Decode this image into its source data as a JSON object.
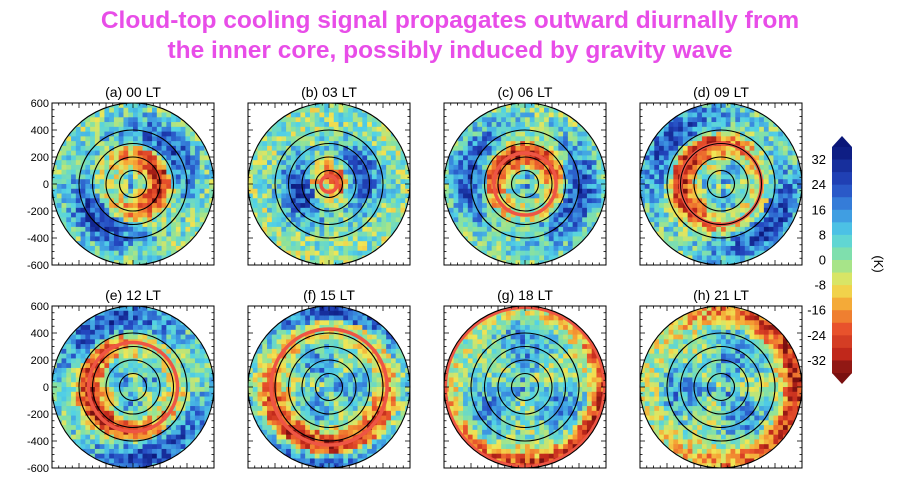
{
  "title": {
    "line1": "Cloud-top cooling signal propagates outward diurnally from",
    "line2": "the inner core, possibly induced by gravity wave"
  },
  "colors": {
    "title": "#e84de8",
    "cold": "#c0281b",
    "warm": "#1a2bb5",
    "neutral": "#7fe0a0",
    "highlight_ring": "#ee5544"
  },
  "chart_data": {
    "type": "heatmap",
    "panels": [
      {
        "label": "(a) 00 LT",
        "cold_radius": 200,
        "highlight_ring_radius": null
      },
      {
        "label": "(b) 03 LT",
        "cold_radius": 60,
        "highlight_ring_radius": 60
      },
      {
        "label": "(c) 06 LT",
        "cold_radius": 230,
        "highlight_ring_radius": 230
      },
      {
        "label": "(d) 09 LT",
        "cold_radius": 300,
        "highlight_ring_radius": 300
      },
      {
        "label": "(e) 12 LT",
        "cold_radius": 330,
        "highlight_ring_radius": 330
      },
      {
        "label": "(f) 15 LT",
        "cold_radius": 430,
        "highlight_ring_radius": 430
      },
      {
        "label": "(g) 18 LT",
        "cold_radius": 590,
        "highlight_ring_radius": 590
      },
      {
        "label": "(h) 21 LT",
        "cold_radius": 560,
        "highlight_ring_radius": null
      }
    ],
    "range_rings": [
      100,
      200,
      300,
      400
    ],
    "axis_range": [
      -600,
      600
    ],
    "y_ticks": [
      600,
      400,
      200,
      0,
      -200,
      -400,
      -600
    ],
    "colorbar": {
      "unit": "(K)",
      "range": [
        -36,
        36
      ],
      "ticks": [
        32,
        24,
        16,
        8,
        0,
        -8,
        -16,
        -24,
        -32
      ]
    }
  }
}
